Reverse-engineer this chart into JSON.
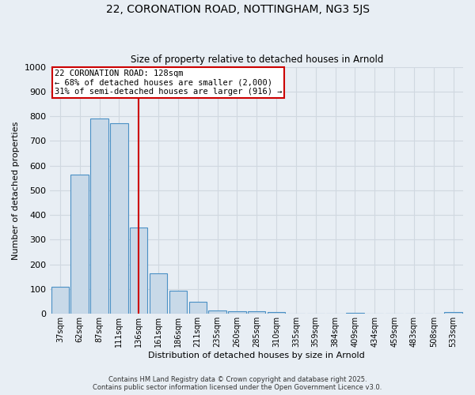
{
  "title1": "22, CORONATION ROAD, NOTTINGHAM, NG3 5JS",
  "title2": "Size of property relative to detached houses in Arnold",
  "xlabel": "Distribution of detached houses by size in Arnold",
  "ylabel": "Number of detached properties",
  "bar_labels": [
    "37sqm",
    "62sqm",
    "87sqm",
    "111sqm",
    "136sqm",
    "161sqm",
    "186sqm",
    "211sqm",
    "235sqm",
    "260sqm",
    "285sqm",
    "310sqm",
    "335sqm",
    "359sqm",
    "384sqm",
    "409sqm",
    "434sqm",
    "459sqm",
    "483sqm",
    "508sqm",
    "533sqm"
  ],
  "bar_values": [
    110,
    565,
    790,
    770,
    350,
    165,
    95,
    50,
    15,
    10,
    10,
    8,
    0,
    0,
    0,
    5,
    0,
    0,
    0,
    0,
    8
  ],
  "bar_color": "#c8d9e8",
  "bar_edge_color": "#4a90c4",
  "red_line_index": 4,
  "annotation_title": "22 CORONATION ROAD: 128sqm",
  "annotation_line1": "← 68% of detached houses are smaller (2,000)",
  "annotation_line2": "31% of semi-detached houses are larger (916) →",
  "annotation_box_color": "#ffffff",
  "annotation_box_edge": "#cc0000",
  "red_line_color": "#cc0000",
  "ylim": [
    0,
    1000
  ],
  "yticks": [
    0,
    100,
    200,
    300,
    400,
    500,
    600,
    700,
    800,
    900,
    1000
  ],
  "grid_color": "#d0d8e0",
  "bg_color": "#e8eef4",
  "footer1": "Contains HM Land Registry data © Crown copyright and database right 2025.",
  "footer2": "Contains public sector information licensed under the Open Government Licence v3.0."
}
